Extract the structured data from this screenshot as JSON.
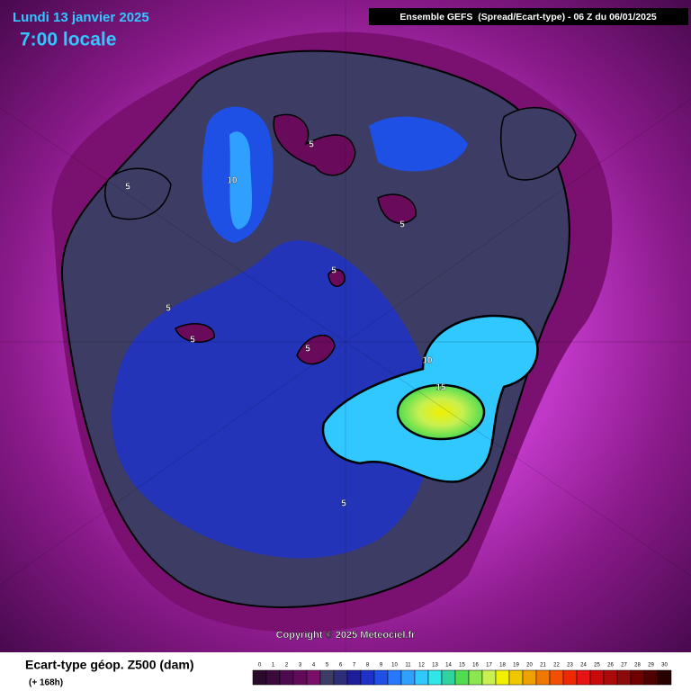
{
  "header": {
    "date": "Lundi 13 janvier 2025",
    "time": "7:00 locale",
    "model": "Ensemble GEFS  (Spread/Ecart-type) - 06 Z du 06/01/2025"
  },
  "contour_labels": [
    10,
    5,
    5,
    5,
    5,
    5,
    5,
    5,
    10,
    15,
    5
  ],
  "copyright": "Copyright © 2025 Meteociel.fr",
  "legend": {
    "title": "Ecart-type géop. Z500 (dam)",
    "lead": "(+ 168h)",
    "ticks": [
      0,
      1,
      2,
      3,
      4,
      5,
      6,
      7,
      8,
      9,
      10,
      11,
      12,
      13,
      14,
      15,
      16,
      17,
      18,
      19,
      20,
      21,
      22,
      23,
      24,
      25,
      26,
      27,
      28,
      29,
      30
    ],
    "colors": [
      "#2a0a2a",
      "#3a0a3a",
      "#4e0a4e",
      "#620a5a",
      "#7a0f6a",
      "#3c3c64",
      "#2e2e78",
      "#1e1e9a",
      "#1e32c8",
      "#1e50e6",
      "#2878ff",
      "#30a0ff",
      "#30c8ff",
      "#30e6e6",
      "#30d2a0",
      "#50dc50",
      "#8ce650",
      "#c8f050",
      "#f0f000",
      "#f0c800",
      "#f0a000",
      "#f07800",
      "#f05000",
      "#f02800",
      "#e61414",
      "#c80a0a",
      "#aa0a0a",
      "#8c0a0a",
      "#6e0000",
      "#500000",
      "#280000"
    ]
  }
}
